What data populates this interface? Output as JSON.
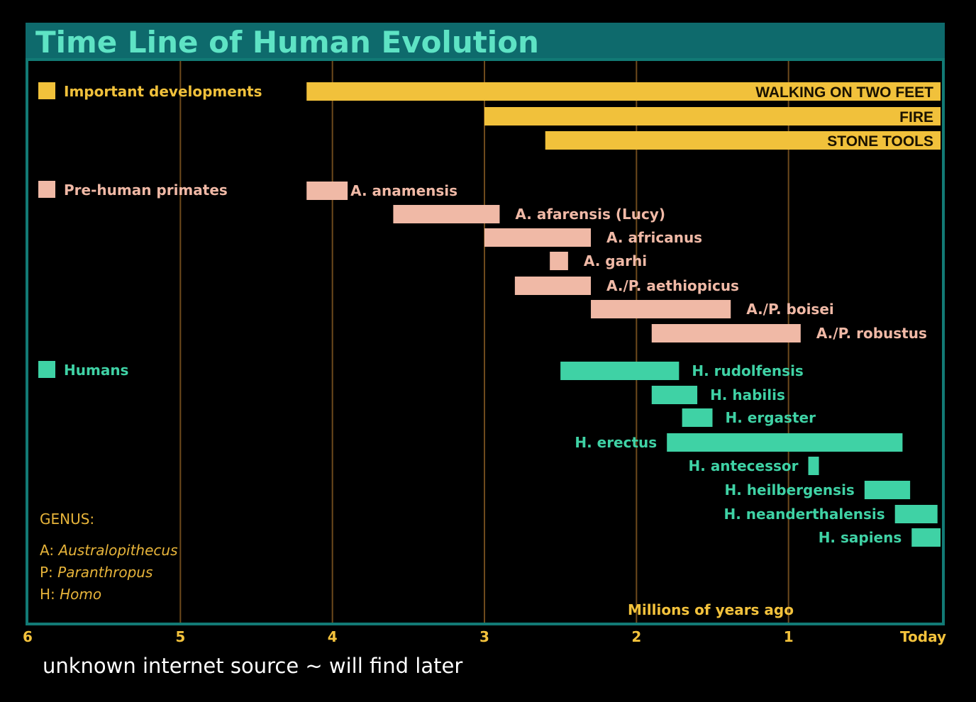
{
  "chart_data": {
    "type": "timeline",
    "title": "Time Line of Human Evolution",
    "xlabel": "Millions of years ago",
    "xlim": [
      6,
      0
    ],
    "x_ticks": [
      {
        "value": 6,
        "label": "6"
      },
      {
        "value": 5,
        "label": "5"
      },
      {
        "value": 4,
        "label": "4"
      },
      {
        "value": 3,
        "label": "3"
      },
      {
        "value": 2,
        "label": "2"
      },
      {
        "value": 1,
        "label": "1"
      },
      {
        "value": 0,
        "label": "Today"
      }
    ],
    "legend": [
      {
        "label": "Important developments",
        "color": "#f1c13b"
      },
      {
        "label": "Pre-human primates",
        "color": "#f0b9a6"
      },
      {
        "label": "Humans",
        "color": "#3fd2a5"
      }
    ],
    "developments": [
      {
        "name": "WALKING ON TWO FEET",
        "start": 4.17,
        "end": 0.0
      },
      {
        "name": "FIRE",
        "start": 3.0,
        "end": 0.0
      },
      {
        "name": "STONE TOOLS",
        "start": 2.6,
        "end": 0.0
      }
    ],
    "pre_human_primates": [
      {
        "name": "A. anamensis",
        "start": 4.17,
        "end": 3.9
      },
      {
        "name": "A. afarensis (Lucy)",
        "start": 3.6,
        "end": 2.9
      },
      {
        "name": "A. africanus",
        "start": 3.0,
        "end": 2.3
      },
      {
        "name": "A. garhi",
        "start": 2.57,
        "end": 2.45
      },
      {
        "name": "A./P. aethiopicus",
        "start": 2.8,
        "end": 2.3
      },
      {
        "name": "A./P. boisei",
        "start": 2.3,
        "end": 1.38
      },
      {
        "name": "A./P. robustus",
        "start": 1.9,
        "end": 0.92
      }
    ],
    "humans": [
      {
        "name": "H. rudolfensis",
        "start": 2.5,
        "end": 1.72
      },
      {
        "name": "H. habilis",
        "start": 1.9,
        "end": 1.6
      },
      {
        "name": "H. ergaster",
        "start": 1.7,
        "end": 1.5
      },
      {
        "name": "H. erectus",
        "start": 1.8,
        "end": 0.25
      },
      {
        "name": "H. antecessor",
        "start": 0.87,
        "end": 0.8
      },
      {
        "name": "H. heilbergensis",
        "start": 0.5,
        "end": 0.2
      },
      {
        "name": "H. neanderthalensis",
        "start": 0.3,
        "end": 0.02
      },
      {
        "name": "H. sapiens",
        "start": 0.19,
        "end": 0.0
      }
    ],
    "genus_key": {
      "heading": "GENUS:",
      "items": [
        {
          "abbr": "A:",
          "name": "Australopithecus"
        },
        {
          "abbr": "P:",
          "name": "Paranthropus"
        },
        {
          "abbr": "H:",
          "name": "Homo"
        }
      ]
    },
    "colors": {
      "title_band": "#0e6a6c",
      "title_text": "#5ee3c4",
      "frame": "#127a75",
      "gridline": "#6e4a1c",
      "development": "#f1c13b",
      "pre_human": "#f0b9a6",
      "human": "#3fd2a5"
    }
  },
  "caption": "unknown internet source ~ will find later"
}
